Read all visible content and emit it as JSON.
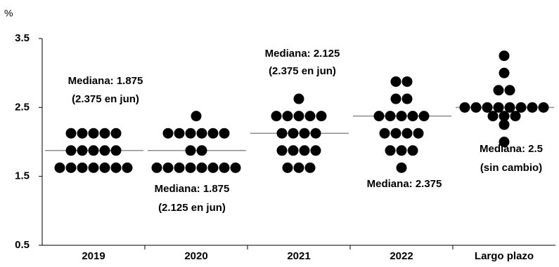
{
  "chart_data": {
    "type": "dot",
    "y_label": "%",
    "categories": [
      "2019",
      "2020",
      "2021",
      "2022",
      "Largo plazo"
    ],
    "dots": [
      [
        2.125,
        2.125,
        2.125,
        2.125,
        2.125,
        1.875,
        1.875,
        1.875,
        1.875,
        1.875,
        1.625,
        1.625,
        1.625,
        1.625,
        1.625,
        1.625,
        1.625
      ],
      [
        2.375,
        2.125,
        2.125,
        2.125,
        2.125,
        2.125,
        2.125,
        1.875,
        1.875,
        1.625,
        1.625,
        1.625,
        1.625,
        1.625,
        1.625,
        1.625,
        1.625
      ],
      [
        2.625,
        2.375,
        2.375,
        2.375,
        2.375,
        2.375,
        2.125,
        2.125,
        2.125,
        2.125,
        1.875,
        1.875,
        1.875,
        1.875,
        1.625,
        1.625,
        1.625
      ],
      [
        2.875,
        2.875,
        2.625,
        2.625,
        2.375,
        2.375,
        2.375,
        2.375,
        2.375,
        2.125,
        2.125,
        2.125,
        2.125,
        1.875,
        1.875,
        1.875,
        1.625
      ],
      [
        3.25,
        3.0,
        2.75,
        2.75,
        2.5,
        2.5,
        2.5,
        2.5,
        2.5,
        2.5,
        2.5,
        2.5,
        2.375,
        2.375,
        2.375,
        2.25,
        2.0
      ]
    ],
    "medians": [
      1.875,
      1.875,
      2.125,
      2.375,
      2.5
    ],
    "annotations": [
      "Mediana: 1.875",
      "(2.375 en jun)",
      "Mediana: 1.875",
      "(2.125 en jun)",
      "Mediana: 2.125",
      "(2.375 en jun)",
      "Mediana: 2.375",
      "Mediana: 2.5",
      "(sin cambio)"
    ],
    "dot_color": "#000000",
    "median_color": "#8c8c8c",
    "ylim": [
      0.5,
      3.5
    ],
    "yticks": [
      0.5,
      1.5,
      2.5,
      3.5
    ]
  }
}
